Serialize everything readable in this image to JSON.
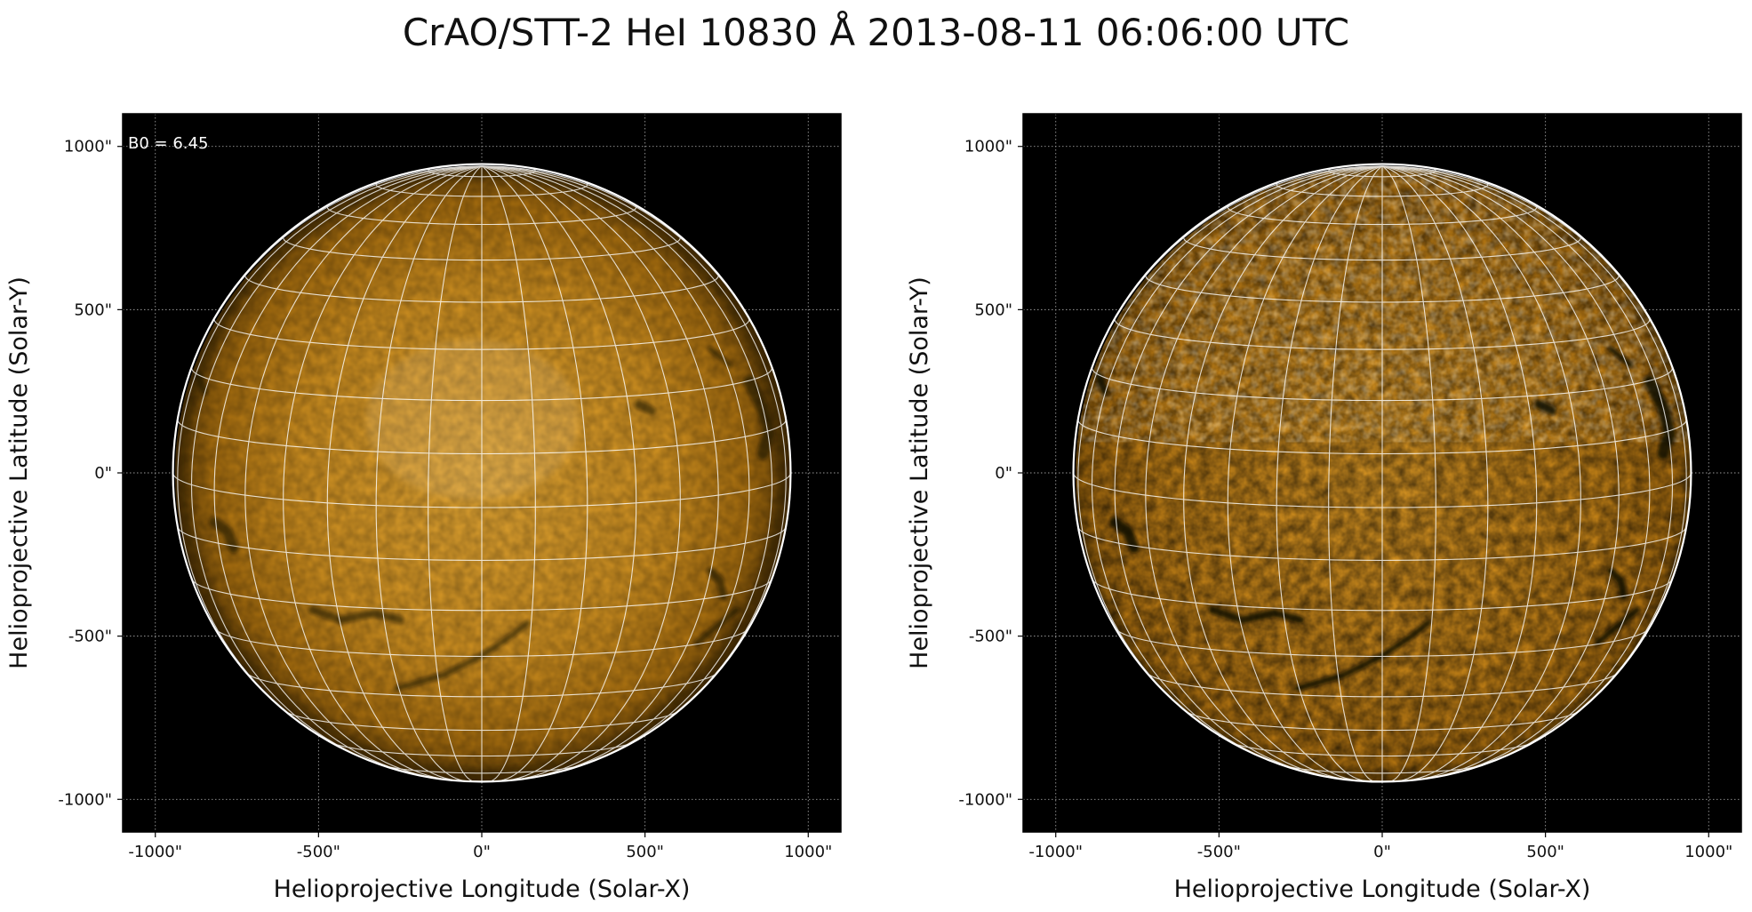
{
  "figure": {
    "title": "CrAO/STT-2 HeI 10830 Å 2013-08-11 06:06:00 UTC"
  },
  "panels": [
    {
      "id": "left",
      "annotation": "B0 = 6.45",
      "xlabel": "Helioprojective Longitude (Solar-X)",
      "ylabel": "Helioprojective Latitude (Solar-Y)",
      "x_ticks": [
        "-1000\"",
        "-500\"",
        "0\"",
        "500\"",
        "1000\""
      ],
      "y_ticks": [
        "1000\"",
        "500\"",
        "0\"",
        "-500\"",
        "-1000\""
      ],
      "contrast": "low"
    },
    {
      "id": "right",
      "annotation": "",
      "xlabel": "Helioprojective Longitude (Solar-X)",
      "ylabel": "Helioprojective Latitude (Solar-Y)",
      "x_ticks": [
        "-1000\"",
        "-500\"",
        "0\"",
        "500\"",
        "1000\""
      ],
      "y_ticks": [
        "1000\"",
        "500\"",
        "0\"",
        "-500\"",
        "-1000\""
      ],
      "contrast": "high"
    }
  ],
  "colors": {
    "background": "#000000",
    "disk_center": "#e0a028",
    "disk_edge": "#7a4f08",
    "grid": "#ffffff",
    "axis_text": "#111111"
  }
}
